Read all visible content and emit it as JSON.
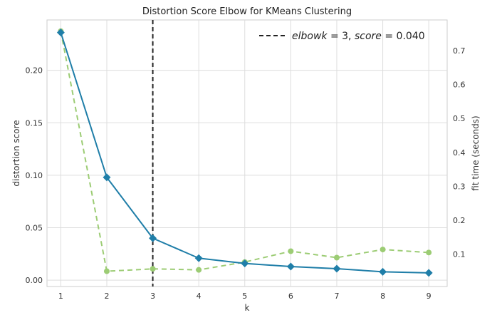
{
  "chart_data": {
    "type": "line",
    "title": "Distortion Score Elbow for KMeans Clustering",
    "xlabel": "k",
    "ylabel": "distortion score",
    "y2label": "fit time (seconds)",
    "x": [
      1,
      2,
      3,
      4,
      5,
      6,
      7,
      8,
      9
    ],
    "xlim": [
      0.7,
      9.4
    ],
    "ylim": [
      -0.006,
      0.248
    ],
    "y2lim": [
      0.005,
      0.79
    ],
    "yticks": [
      "0.00",
      "0.05",
      "0.10",
      "0.15",
      "0.20"
    ],
    "y2ticks": [
      "0.1",
      "0.2",
      "0.3",
      "0.4",
      "0.5",
      "0.6",
      "0.7"
    ],
    "series": [
      {
        "axis": "left",
        "values": [
          0.236,
          0.098,
          0.04,
          0.021,
          0.016,
          0.013,
          0.011,
          0.008,
          0.007
        ],
        "color": "#1f7ea8",
        "style": "solid",
        "marker": "diamond"
      },
      {
        "axis": "right",
        "values": [
          0.757,
          0.05,
          0.057,
          0.054,
          0.077,
          0.109,
          0.09,
          0.114,
          0.105
        ],
        "color": "#9ccc74",
        "style": "dashed",
        "marker": "circle"
      }
    ],
    "elbow": {
      "k": 3
    },
    "legend": {
      "placement": "top-right",
      "label_prefix": "elbow",
      "label_k_var": "k",
      "label_k_value": " = 3, ",
      "label_score_var": "score",
      "label_score_value": " = 0.040"
    },
    "grid": true,
    "right_axis_color": "#9ccc74"
  }
}
